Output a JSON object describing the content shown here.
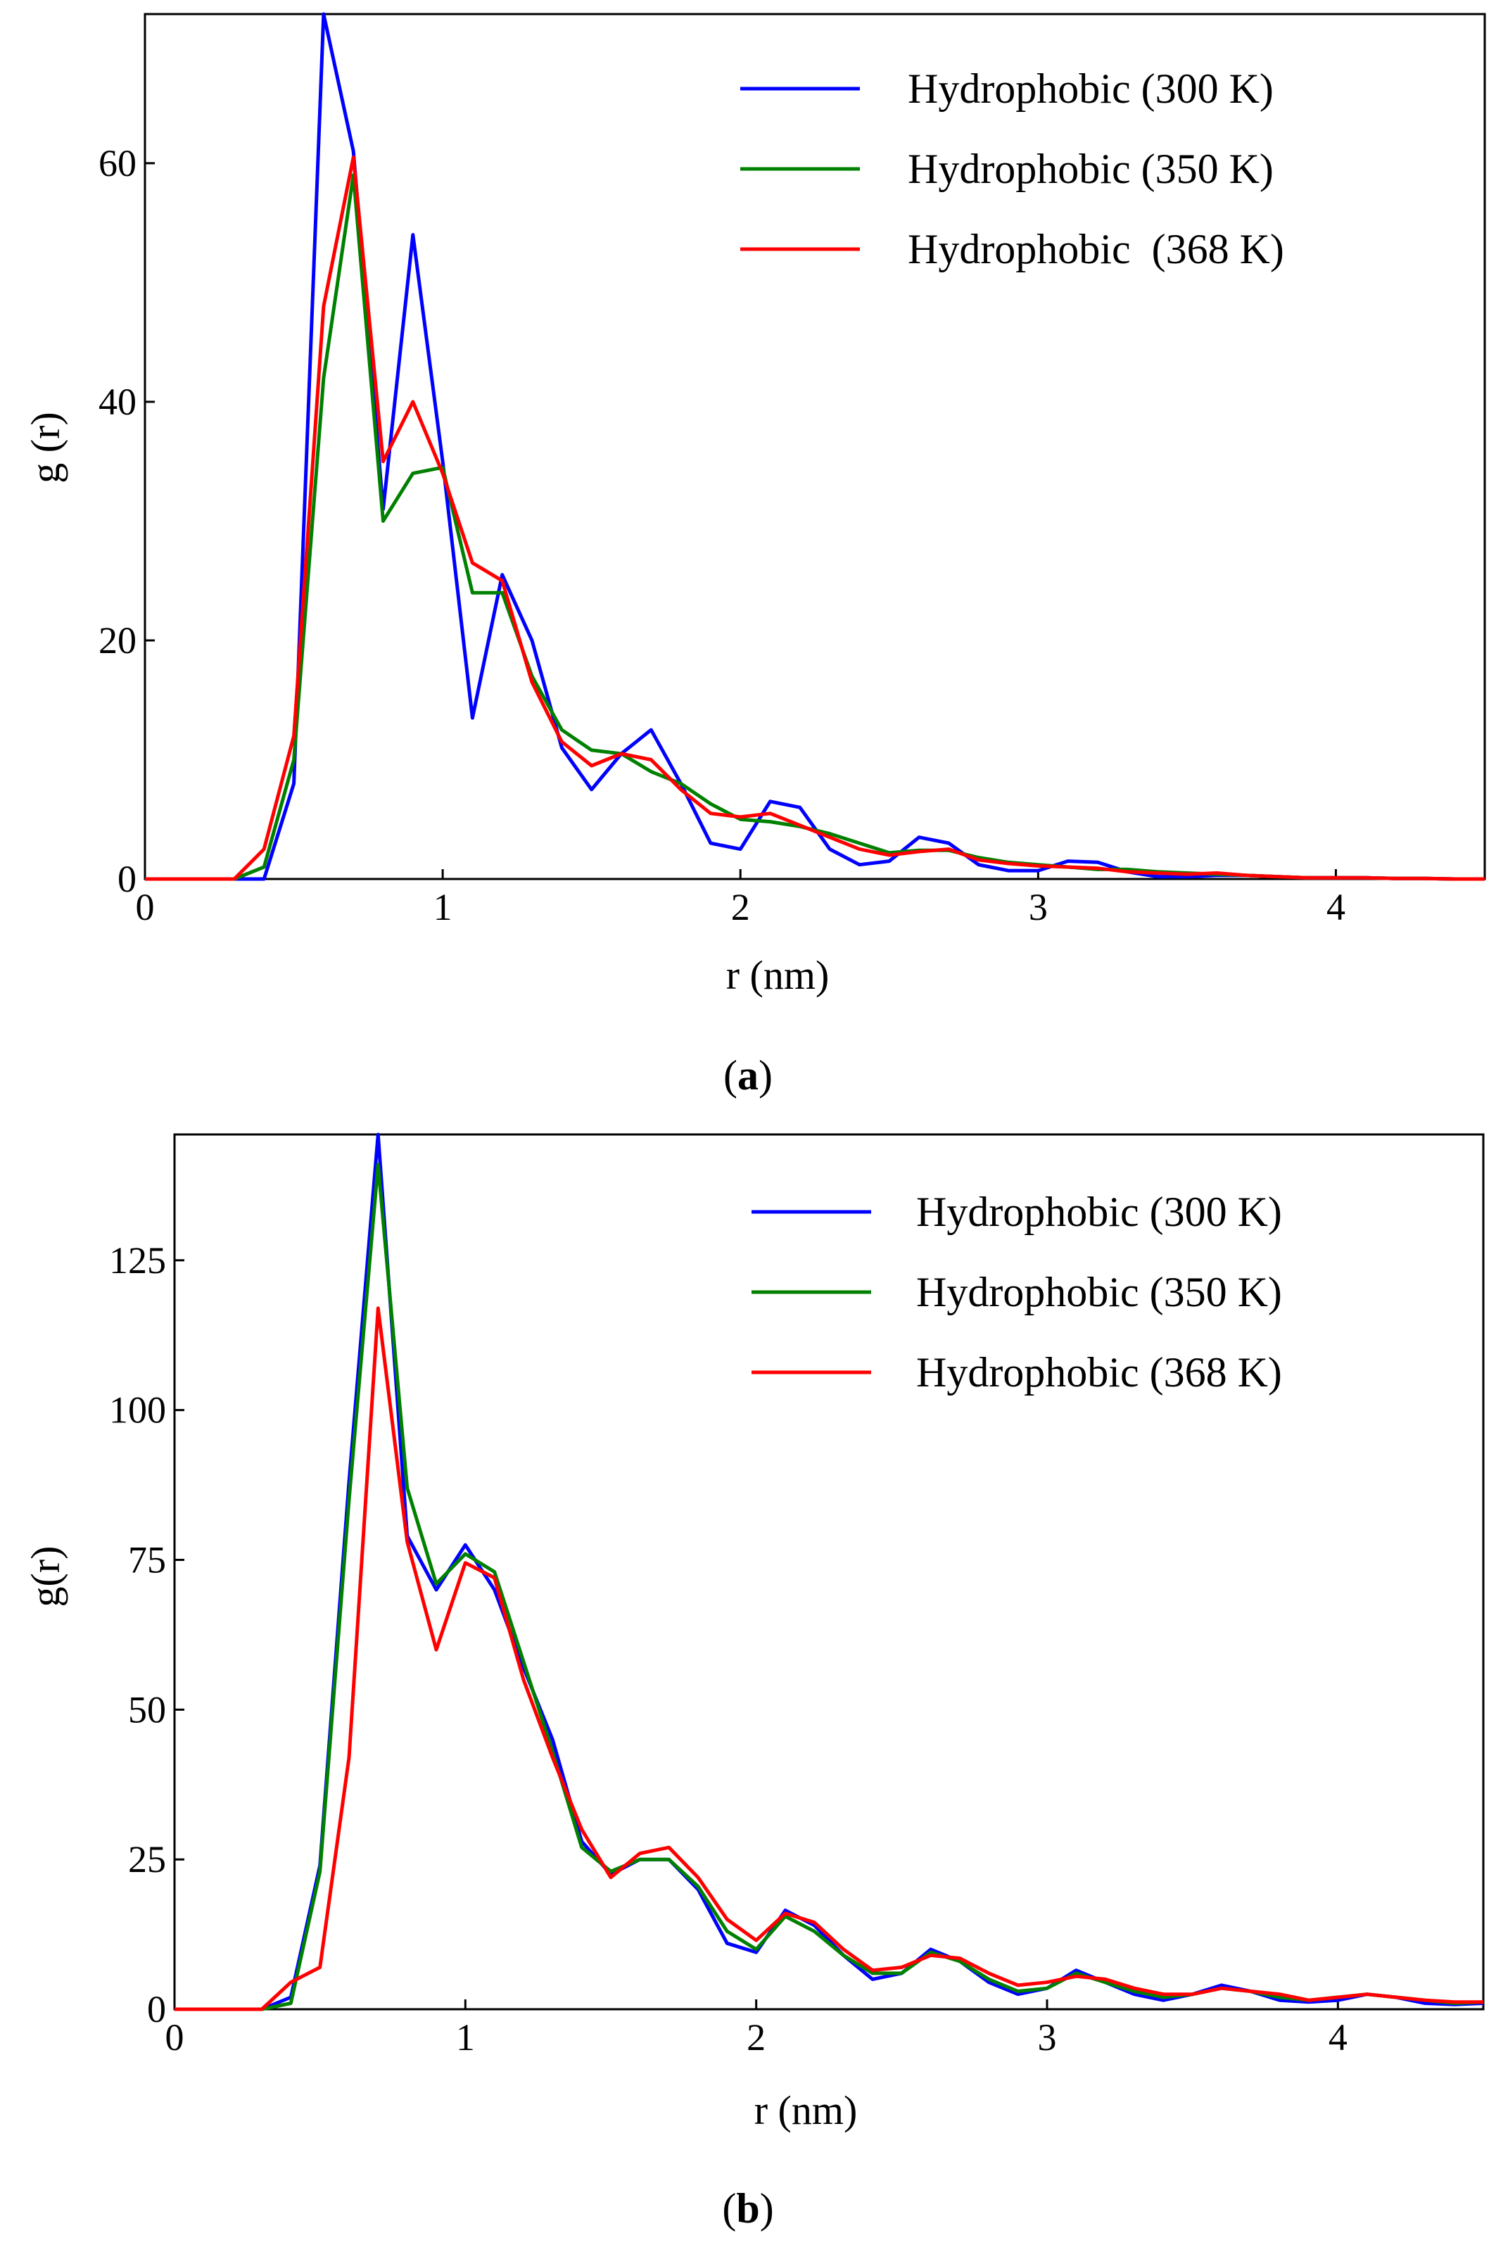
{
  "chart_data": [
    {
      "type": "line",
      "panel_label": "a",
      "xlabel": "r (nm)",
      "ylabel": "g (r)",
      "xlim": [
        0,
        4.5
      ],
      "ylim": [
        0,
        72.5
      ],
      "xticks": [
        0,
        1,
        2,
        3,
        4
      ],
      "yticks": [
        0,
        20,
        40,
        60
      ],
      "legend_position": "top-right",
      "x": [
        0,
        0.1,
        0.2,
        0.3,
        0.4,
        0.5,
        0.6,
        0.7,
        0.8,
        0.9,
        1.0,
        1.1,
        1.2,
        1.3,
        1.4,
        1.5,
        1.6,
        1.7,
        1.8,
        1.9,
        2.0,
        2.1,
        2.2,
        2.3,
        2.4,
        2.5,
        2.6,
        2.7,
        2.8,
        2.9,
        3.0,
        3.1,
        3.2,
        3.3,
        3.4,
        3.5,
        3.6,
        3.7,
        3.8,
        3.9,
        4.0,
        4.1,
        4.2,
        4.3,
        4.4,
        4.5
      ],
      "series": [
        {
          "name": "Hydrophobic (300 K)",
          "color": "#0000ff",
          "values": [
            0,
            0,
            0,
            0,
            0,
            8,
            73,
            61,
            31,
            54,
            35,
            13.5,
            25.5,
            20,
            11,
            7.5,
            10.5,
            12.5,
            8,
            3,
            2.5,
            6.5,
            6,
            2.5,
            1.2,
            1.5,
            3.5,
            3,
            1.2,
            0.7,
            0.7,
            1.5,
            1.4,
            0.6,
            0.2,
            0.2,
            0.3,
            0.3,
            0.2,
            0.1,
            0.1,
            0.1,
            0.05,
            0.05,
            0,
            0
          ]
        },
        {
          "name": "Hydrophobic (350 K)",
          "color": "#008000",
          "values": [
            0,
            0,
            0,
            0,
            1,
            10,
            42,
            59,
            30,
            34,
            34.5,
            24,
            24,
            17,
            12.5,
            10.8,
            10.5,
            9,
            8,
            6.3,
            5,
            4.8,
            4.4,
            3.8,
            3,
            2.2,
            2.4,
            2.4,
            1.8,
            1.4,
            1.2,
            1,
            0.8,
            0.8,
            0.6,
            0.5,
            0.4,
            0.3,
            0.2,
            0.1,
            0.1,
            0.1,
            0.05,
            0.05,
            0,
            0
          ]
        },
        {
          "name": "Hydrophobic  (368 K)",
          "color": "#ff0000",
          "values": [
            0,
            0,
            0,
            0,
            2.5,
            12,
            48,
            60.5,
            35,
            40,
            34,
            26.5,
            25,
            16.5,
            11.5,
            9.5,
            10.5,
            10,
            7.5,
            5.5,
            5.2,
            5.5,
            4.5,
            3.5,
            2.5,
            2,
            2.3,
            2.5,
            1.6,
            1.3,
            1.1,
            1,
            0.9,
            0.6,
            0.5,
            0.4,
            0.5,
            0.3,
            0.2,
            0.1,
            0.1,
            0.1,
            0.05,
            0.05,
            0,
            0
          ]
        }
      ]
    },
    {
      "type": "line",
      "panel_label": "b",
      "xlabel": "r (nm)",
      "ylabel": "g(r)",
      "xlim": [
        0,
        4.5
      ],
      "ylim": [
        0,
        146
      ],
      "xticks": [
        0,
        1,
        2,
        3,
        4
      ],
      "yticks": [
        0,
        25,
        50,
        75,
        100,
        125
      ],
      "legend_position": "top-right",
      "x": [
        0,
        0.1,
        0.2,
        0.3,
        0.4,
        0.5,
        0.6,
        0.7,
        0.8,
        0.9,
        1.0,
        1.1,
        1.2,
        1.3,
        1.4,
        1.5,
        1.6,
        1.7,
        1.8,
        1.9,
        2.0,
        2.1,
        2.2,
        2.3,
        2.4,
        2.5,
        2.6,
        2.7,
        2.8,
        2.9,
        3.0,
        3.1,
        3.2,
        3.3,
        3.4,
        3.5,
        3.6,
        3.7,
        3.8,
        3.9,
        4.0,
        4.1,
        4.2,
        4.3,
        4.4,
        4.5
      ],
      "series": [
        {
          "name": "Hydrophobic (300 K)",
          "color": "#0000ff",
          "values": [
            0,
            0,
            0,
            0,
            2,
            24,
            88,
            146,
            79,
            70,
            77.5,
            70,
            57,
            45,
            28,
            22.5,
            25,
            25,
            20,
            11,
            9.5,
            16.5,
            14,
            9,
            5,
            6,
            10,
            8,
            4.5,
            2.5,
            3.5,
            6.5,
            4.5,
            2.5,
            1.5,
            2.5,
            4,
            3,
            1.5,
            1.2,
            1.5,
            2.5,
            2,
            1,
            0.8,
            1
          ]
        },
        {
          "name": "Hydrophobic (350 K)",
          "color": "#008000",
          "values": [
            0,
            0,
            0,
            0,
            1,
            23,
            85,
            141,
            87,
            71,
            76,
            73,
            58,
            43,
            27,
            23,
            25,
            25,
            20.5,
            13,
            10,
            15.5,
            13,
            9,
            6,
            6,
            9.5,
            8,
            5,
            3,
            3.5,
            6,
            4.5,
            3,
            2,
            2.5,
            3.5,
            3,
            2,
            1.5,
            2,
            2.5,
            2,
            1.5,
            1,
            1.2
          ]
        },
        {
          "name": "Hydrophobic (368 K)",
          "color": "#ff0000",
          "values": [
            0,
            0,
            0,
            0,
            4.5,
            7,
            42,
            117,
            78,
            60,
            74.5,
            72,
            55,
            42,
            30,
            22,
            26,
            27,
            22,
            15,
            11.5,
            16,
            14.5,
            10,
            6.5,
            7,
            9,
            8.5,
            6,
            4,
            4.5,
            5.5,
            5,
            3.5,
            2.5,
            2.5,
            3.5,
            3,
            2.5,
            1.5,
            2,
            2.5,
            2,
            1.5,
            1.2,
            1.2
          ]
        }
      ]
    }
  ]
}
